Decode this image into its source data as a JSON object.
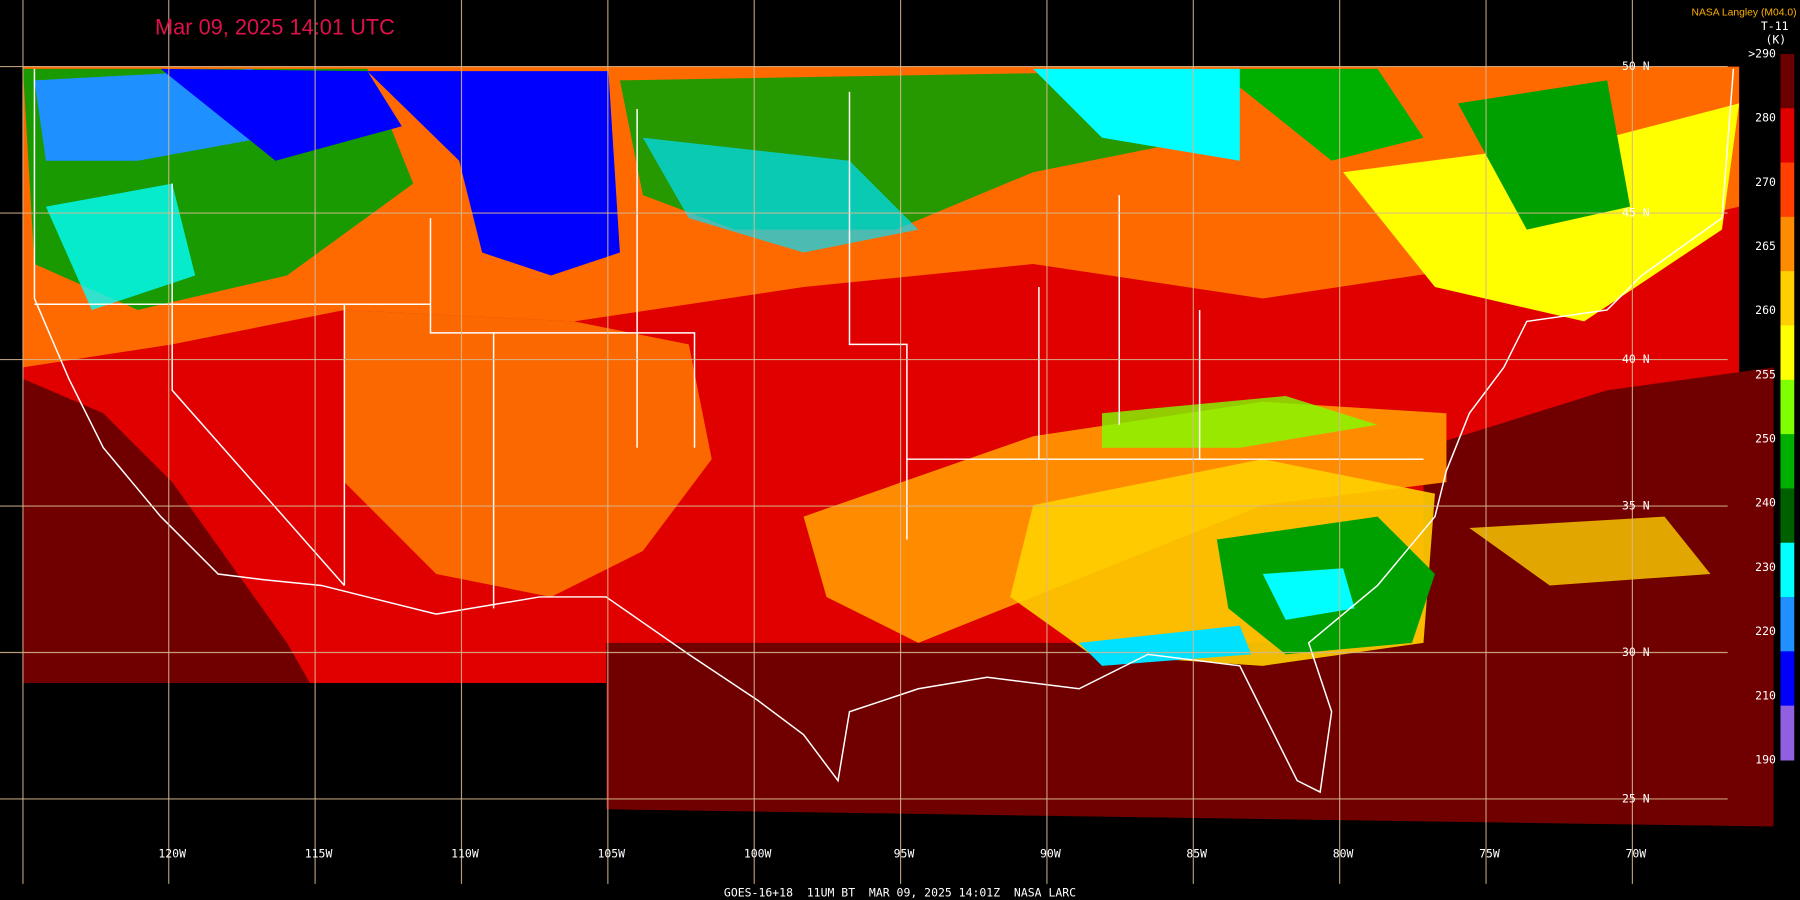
{
  "header": {
    "title": "Mar 09, 2025 14:01 UTC",
    "attribution": "NASA Langley (M04.0)",
    "product": "T-11",
    "unit": "(K)"
  },
  "footer": "GOES-16+18  11UM BT  MAR 09, 2025 14:01Z  NASA LARC",
  "longitude_labels": [
    "120W",
    "115W",
    "110W",
    "105W",
    "100W",
    "95W",
    "90W",
    "85W",
    "80W",
    "75W",
    "70W"
  ],
  "latitude_labels": [
    "50 N",
    "45 N",
    "40 N",
    "35 N",
    "30 N",
    "25 N"
  ],
  "colorbar": {
    "labels": [
      ">290",
      "280",
      "270",
      "265",
      "260",
      "255",
      "250",
      "240",
      "230",
      "220",
      "210",
      "190"
    ],
    "colors": [
      "#6b0000",
      "#e00000",
      "#ff4000",
      "#ff8c00",
      "#ffd000",
      "#ffff00",
      "#80ff00",
      "#00b000",
      "#006000",
      "#00ffff",
      "#1e90ff",
      "#0000ff",
      "#9060e0"
    ]
  }
}
